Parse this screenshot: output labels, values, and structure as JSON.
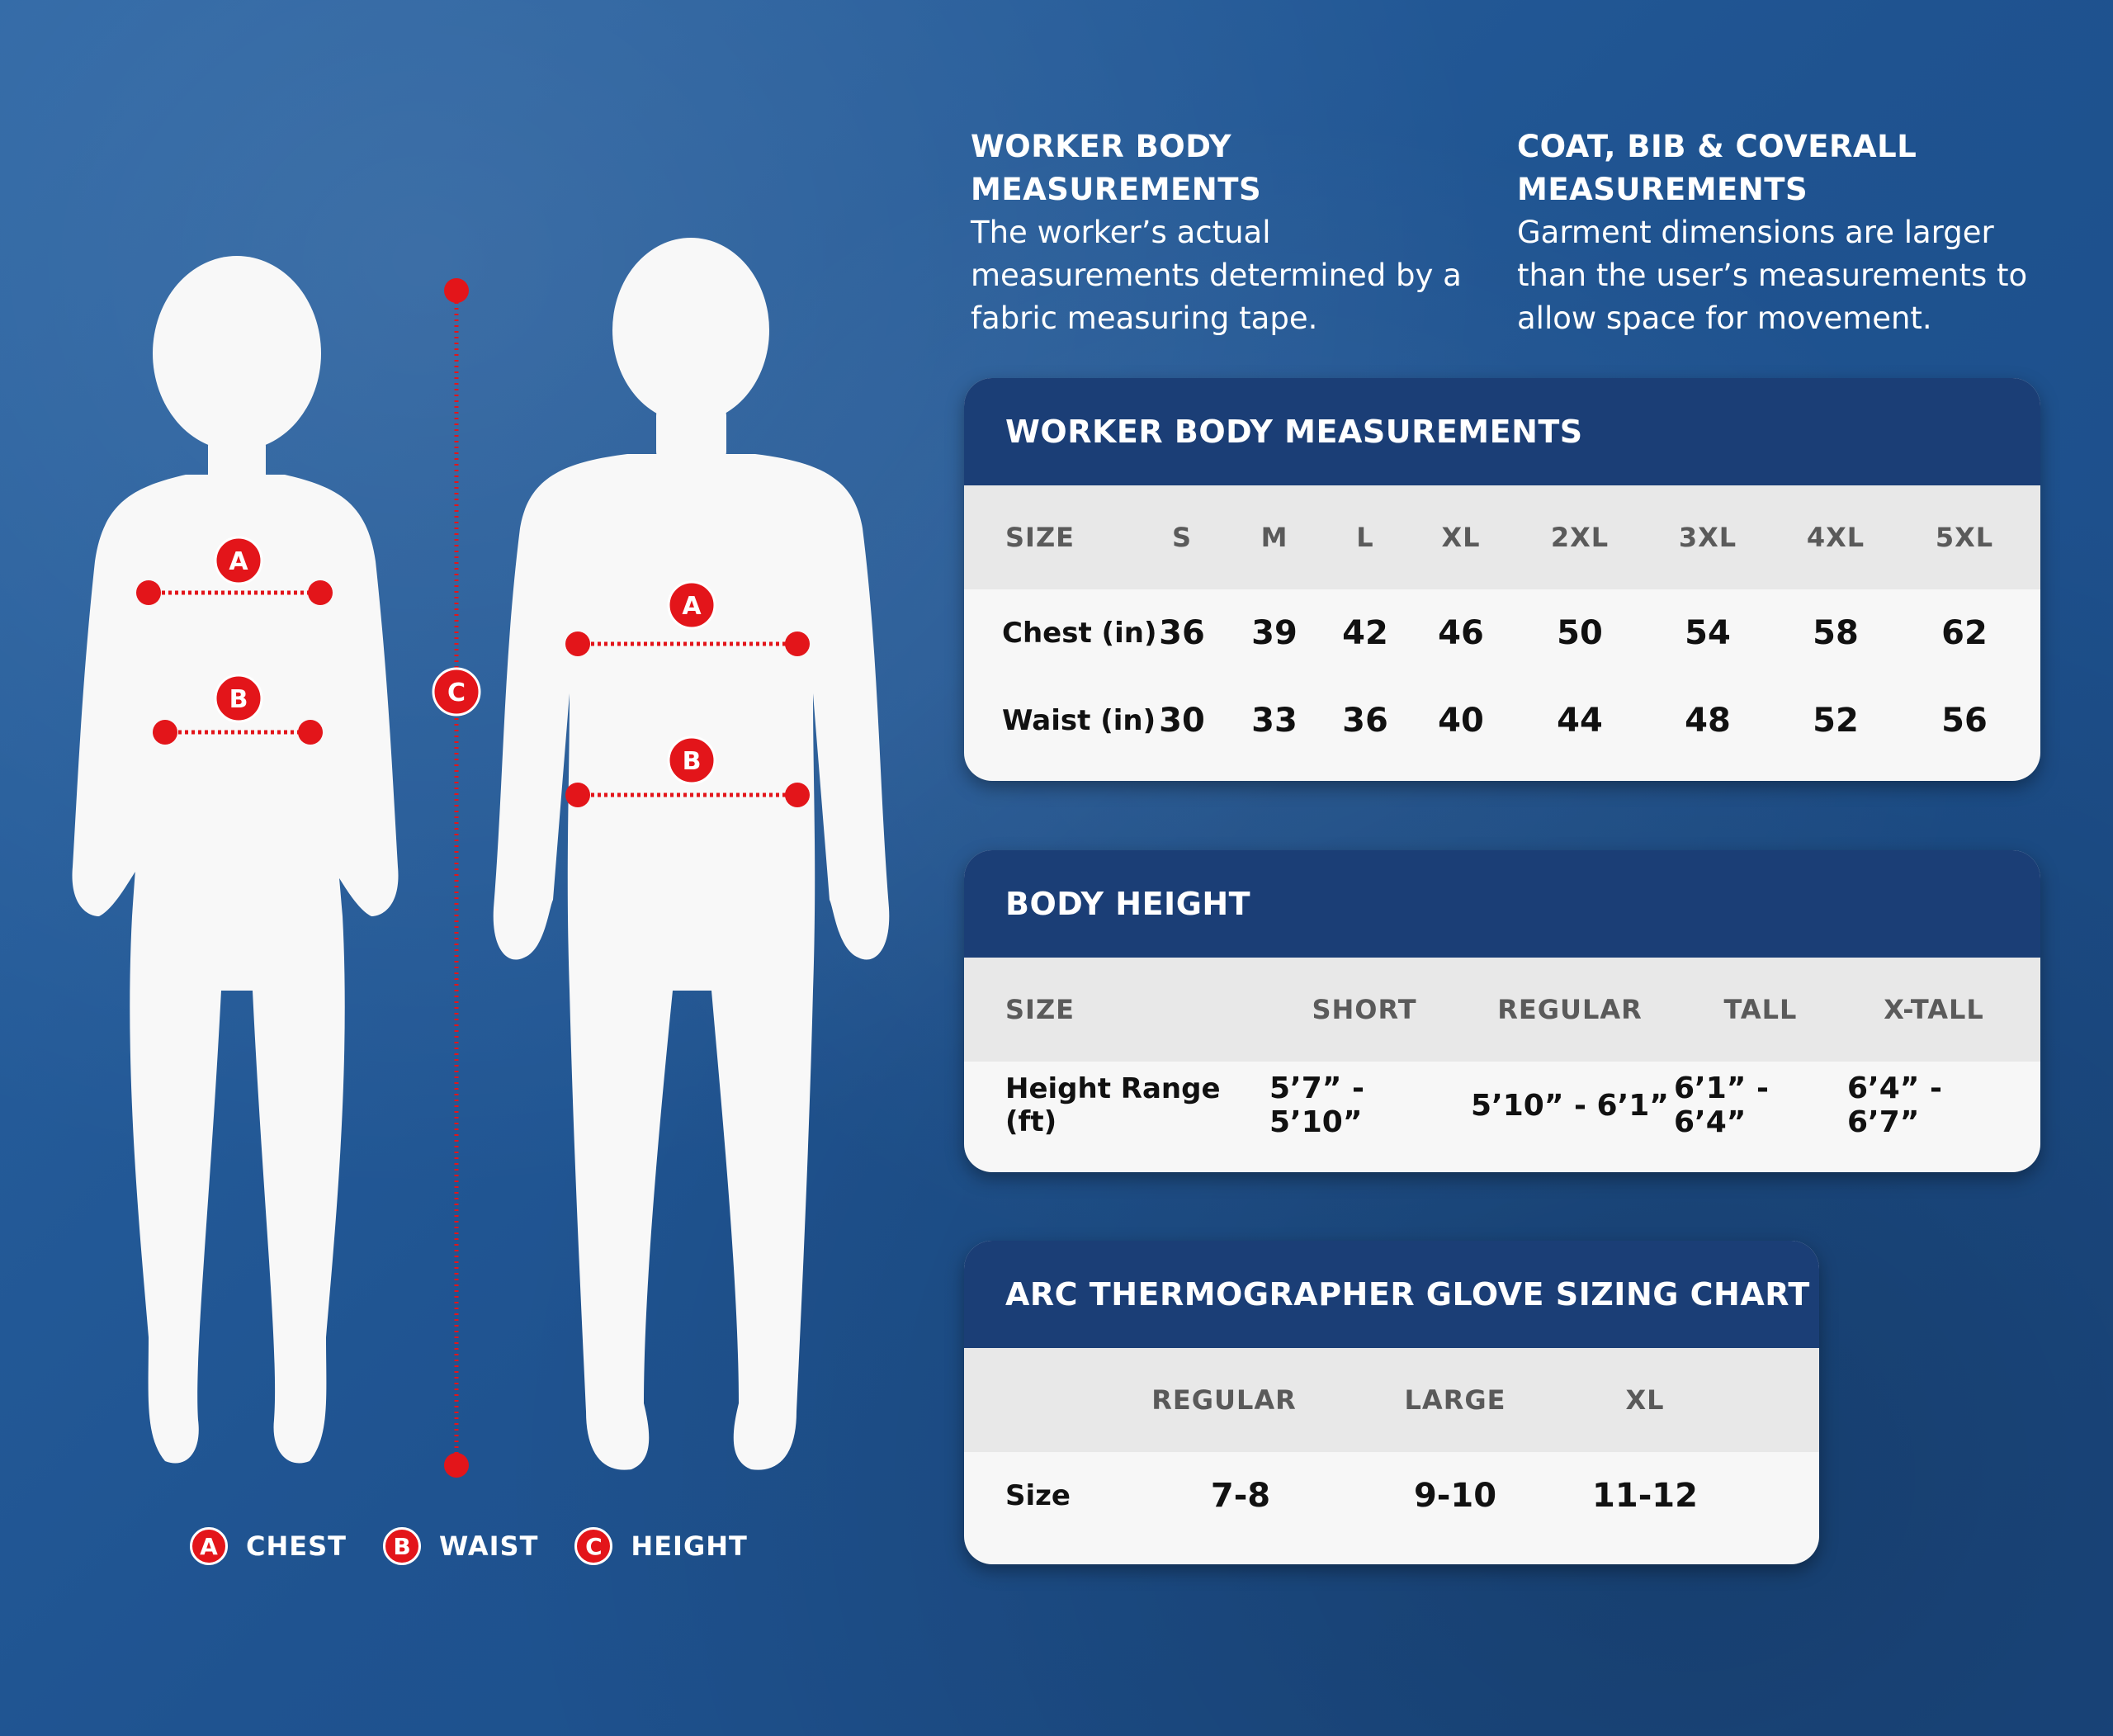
{
  "intro": {
    "left": {
      "heading": "WORKER BODY MEASUREMENTS",
      "lines": [
        "The worker’s actual",
        "measurements determined by a",
        "fabric measuring tape."
      ]
    },
    "right": {
      "heading_lines": [
        "COAT, BIB & COVERALL",
        "MEASUREMENTS"
      ],
      "lines": [
        "Garment dimensions are larger",
        "than the user’s measurements to",
        "allow space for movement."
      ]
    }
  },
  "markers": {
    "chest": "A",
    "waist": "B",
    "height": "C"
  },
  "legend": [
    {
      "letter": "A",
      "label": "CHEST"
    },
    {
      "letter": "B",
      "label": "WAIST"
    },
    {
      "letter": "C",
      "label": "HEIGHT"
    }
  ],
  "colors": {
    "accent_red": "#e3151a",
    "header_navy": "#1b3e76",
    "background_blue": "#245a97",
    "card_bg": "#f7f7f7"
  },
  "tables": {
    "worker": {
      "title": "WORKER BODY MEASUREMENTS",
      "header_label": "SIZE",
      "sizes": [
        "S",
        "M",
        "L",
        "XL",
        "2XL",
        "3XL",
        "4XL",
        "5XL"
      ],
      "rows": [
        {
          "label": "Chest (in)",
          "values": [
            "36",
            "39",
            "42",
            "46",
            "50",
            "54",
            "58",
            "62"
          ]
        },
        {
          "label": "Waist (in)",
          "values": [
            "30",
            "33",
            "36",
            "40",
            "44",
            "48",
            "52",
            "56"
          ]
        }
      ]
    },
    "height": {
      "title": "BODY HEIGHT",
      "header_label": "SIZE",
      "sizes": [
        "SHORT",
        "REGULAR",
        "TALL",
        "X-TALL"
      ],
      "row": {
        "label": "Height Range (ft)",
        "values": [
          "5’7” - 5’10”",
          "5’10” - 6’1”",
          "6’1” - 6’4”",
          "6’4” - 6’7”"
        ]
      }
    },
    "glove": {
      "title": "ARC THERMOGRAPHER GLOVE SIZING CHART",
      "sizes": [
        "REGULAR",
        "LARGE",
        "XL"
      ],
      "row": {
        "label": "Size",
        "values": [
          "7-8",
          "9-10",
          "11-12"
        ]
      }
    }
  }
}
